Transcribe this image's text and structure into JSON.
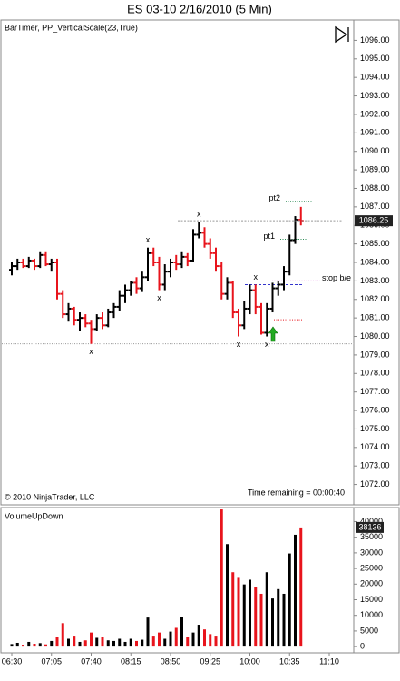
{
  "chart_data": [
    {
      "type": "ohlc",
      "title": "ES 03-10  2/16/2010 (5 Min)",
      "indicator": "BarTimer, PP_VerticalScale(23,True)",
      "copyright": "© 2010 NinjaTrader, LLC",
      "timer": "Time remaining = 00:00:40",
      "up_color": "#000000",
      "down_color": "#e8141c",
      "open": [
        1083.6,
        1083.8,
        1084.0,
        1083.8,
        1084.1,
        1083.8,
        1084.4,
        1083.9,
        1084.0,
        1082.3,
        1081.2,
        1081.5,
        1080.9,
        1081.0,
        1080.7,
        1080.4,
        1081.0,
        1080.6,
        1081.3,
        1081.6,
        1082.2,
        1082.5,
        1082.9,
        1082.6,
        1083.2,
        1084.5,
        1084.0,
        1082.8,
        1083.5,
        1084.0,
        1083.9,
        1084.3,
        1084.1,
        1085.5,
        1085.6,
        1085.0,
        1084.5,
        1083.8,
        1082.3,
        1082.9,
        1081.3,
        1080.6,
        1081.5,
        1082.5,
        1081.6,
        1080.2,
        1081.5,
        1082.6,
        1082.8,
        1083.5,
        1085.2,
        1086.3,
        null,
        null,
        null,
        null,
        null
      ],
      "high": [
        1084.0,
        1084.2,
        1084.2,
        1084.3,
        1084.2,
        1084.6,
        1084.6,
        1084.2,
        1084.2,
        1082.5,
        1081.8,
        1081.6,
        1081.3,
        1081.2,
        1080.9,
        1081.2,
        1081.3,
        1081.5,
        1081.8,
        1082.5,
        1082.8,
        1083.0,
        1083.2,
        1083.5,
        1084.8,
        1084.8,
        1084.3,
        1083.9,
        1084.2,
        1084.4,
        1084.6,
        1084.5,
        1085.8,
        1086.2,
        1085.9,
        1085.3,
        1084.8,
        1084.0,
        1083.2,
        1083.0,
        1081.5,
        1081.9,
        1082.8,
        1082.8,
        1081.8,
        1081.8,
        1082.9,
        1083.0,
        1083.8,
        1085.5,
        1086.5,
        1087.0,
        null,
        null,
        null,
        null,
        null
      ],
      "low": [
        1083.3,
        1083.6,
        1083.7,
        1083.7,
        1083.6,
        1083.7,
        1083.8,
        1083.5,
        1082.0,
        1081.0,
        1080.8,
        1080.6,
        1080.3,
        1080.5,
        1079.6,
        1080.3,
        1080.4,
        1080.5,
        1081.0,
        1081.4,
        1081.8,
        1082.2,
        1082.3,
        1082.4,
        1083.0,
        1083.8,
        1082.5,
        1082.5,
        1083.2,
        1083.6,
        1083.7,
        1083.8,
        1084.0,
        1085.3,
        1084.8,
        1084.2,
        1083.5,
        1082.0,
        1082.0,
        1081.0,
        1080.0,
        1080.4,
        1081.2,
        1081.2,
        1080.1,
        1080.0,
        1081.3,
        1082.2,
        1082.5,
        1083.3,
        1085.0,
        1086.0,
        null,
        null,
        null,
        null,
        null
      ],
      "close": [
        1083.8,
        1084.0,
        1083.8,
        1084.1,
        1083.8,
        1084.4,
        1083.9,
        1084.0,
        1082.3,
        1081.2,
        1081.5,
        1080.9,
        1081.0,
        1080.7,
        1080.4,
        1081.0,
        1080.6,
        1081.3,
        1081.6,
        1082.2,
        1082.5,
        1082.9,
        1082.6,
        1083.2,
        1084.5,
        1084.0,
        1082.8,
        1083.5,
        1084.0,
        1083.9,
        1084.3,
        1084.1,
        1085.5,
        1085.6,
        1085.0,
        1084.5,
        1083.8,
        1082.3,
        1082.9,
        1081.3,
        1080.6,
        1081.5,
        1082.5,
        1081.6,
        1080.2,
        1081.5,
        1082.6,
        1082.8,
        1083.5,
        1085.2,
        1086.3,
        1086.25,
        null,
        null,
        null,
        null,
        null
      ],
      "pivot_label": "x",
      "pivot_highs": [
        null,
        null,
        null,
        null,
        null,
        null,
        null,
        null,
        null,
        null,
        null,
        null,
        null,
        null,
        null,
        null,
        null,
        null,
        null,
        null,
        null,
        null,
        null,
        null,
        1084.8,
        null,
        null,
        null,
        null,
        null,
        null,
        null,
        null,
        1086.2,
        null,
        null,
        null,
        null,
        null,
        null,
        null,
        null,
        null,
        1082.8,
        null,
        null,
        null,
        null,
        null,
        null,
        null,
        null,
        null,
        null,
        null,
        null,
        null
      ],
      "pivot_lows": [
        null,
        null,
        null,
        null,
        null,
        null,
        null,
        null,
        null,
        null,
        null,
        null,
        null,
        null,
        1079.6,
        null,
        null,
        null,
        null,
        null,
        null,
        null,
        null,
        null,
        null,
        null,
        1082.5,
        null,
        null,
        null,
        null,
        null,
        null,
        null,
        null,
        null,
        null,
        null,
        null,
        null,
        1080.0,
        null,
        null,
        null,
        null,
        1080.0,
        null,
        null,
        null,
        null,
        null,
        null,
        null,
        null,
        null,
        null,
        null
      ],
      "levels": [
        {
          "label": "pt2",
          "value": 1087.3,
          "color": "#2e8b57"
        },
        {
          "label": "pt1",
          "value": 1085.25,
          "color": "#2e8b57"
        },
        {
          "label": "stop b/e",
          "value": 1083.0,
          "color": "#cc33cc"
        },
        {
          "value": 1082.8,
          "color": "#3333cc"
        },
        {
          "value": 1080.9,
          "color": "#e8141c"
        },
        {
          "value": 1079.6,
          "color": "#999999"
        }
      ],
      "ylim": [
        1070.9,
        1097.1
      ],
      "yticks": [
        {
          "value": 1072,
          "label": "1072.00"
        },
        {
          "value": 1073,
          "label": "1073.00"
        },
        {
          "value": 1074,
          "label": "1074.00"
        },
        {
          "value": 1075,
          "label": "1075.00"
        },
        {
          "value": 1076,
          "label": "1076.00"
        },
        {
          "value": 1077,
          "label": "1077.00"
        },
        {
          "value": 1078,
          "label": "1078.00"
        },
        {
          "value": 1079,
          "label": "1079.00"
        },
        {
          "value": 1080,
          "label": "1080.00"
        },
        {
          "value": 1081,
          "label": "1081.00"
        },
        {
          "value": 1082,
          "label": "1082.00"
        },
        {
          "value": 1083,
          "label": "1083.00"
        },
        {
          "value": 1084,
          "label": "1084.00"
        },
        {
          "value": 1085,
          "label": "1085.00"
        },
        {
          "value": 1086,
          "label": "1086.00"
        },
        {
          "value": 1087,
          "label": "1087.00"
        },
        {
          "value": 1088,
          "label": "1088.00"
        },
        {
          "value": 1089,
          "label": "1089.00"
        },
        {
          "value": 1090,
          "label": "1090.00"
        },
        {
          "value": 1091,
          "label": "1091.00"
        },
        {
          "value": 1092,
          "label": "1092.00"
        },
        {
          "value": 1093,
          "label": "1093.00"
        },
        {
          "value": 1094,
          "label": "1094.00"
        },
        {
          "value": 1095,
          "label": "1095.00"
        },
        {
          "value": 1096,
          "label": "1096.00"
        }
      ]
    },
    {
      "type": "bar",
      "title": "VolumeUpDown",
      "categories": [
        "06:30",
        null,
        null,
        null,
        null,
        null,
        null,
        "07:05",
        null,
        null,
        null,
        null,
        null,
        null,
        "07:40",
        null,
        null,
        null,
        null,
        null,
        null,
        "08:15",
        null,
        null,
        null,
        null,
        null,
        null,
        "08:50",
        null,
        null,
        null,
        null,
        null,
        null,
        "09:25",
        null,
        null,
        null,
        null,
        null,
        null,
        "10:00",
        null,
        null,
        null,
        null,
        null,
        null,
        "10:35",
        null,
        null,
        null,
        null,
        null,
        null,
        "11:10"
      ],
      "values": [
        800,
        1200,
        600,
        1500,
        900,
        1100,
        700,
        1800,
        3000,
        7500,
        2500,
        3500,
        1500,
        2000,
        4500,
        2800,
        3000,
        2000,
        1800,
        2500,
        1500,
        2500,
        1800,
        2200,
        9300,
        3500,
        4500,
        2500,
        4800,
        6000,
        9500,
        3000,
        4500,
        7000,
        5500,
        4000,
        3500,
        43900,
        32800,
        23800,
        22000,
        19900,
        21400,
        19000,
        16900,
        23800,
        15400,
        18400,
        16900,
        29800,
        35800,
        38136,
        null,
        null,
        null,
        null,
        null
      ],
      "ylim": [
        -2000,
        44500
      ],
      "yticks": [
        0,
        5000,
        10000,
        15000,
        20000,
        25000,
        30000,
        35000,
        40000
      ]
    }
  ]
}
